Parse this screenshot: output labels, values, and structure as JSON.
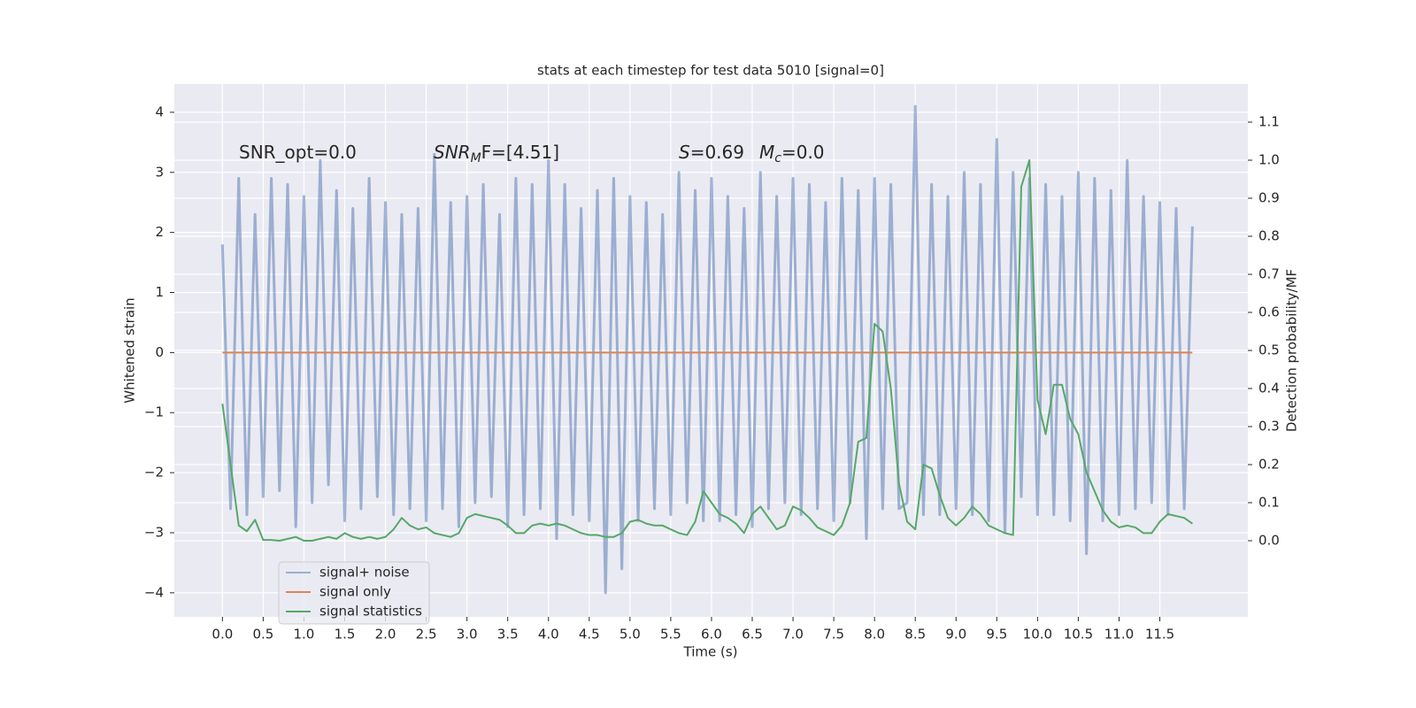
{
  "chart_data": {
    "type": "line",
    "title": "stats at each timestep for test data 5010 [signal=0]",
    "xlabel": "Time (s)",
    "ylabel": "Whitened strain",
    "y2label": "Detection probability/MF",
    "grid": true,
    "legend": "lower left",
    "annotations": [
      [
        {
          "text": "SNR_opt=0.0",
          "style": "normal"
        }
      ],
      [
        {
          "text": "SNR",
          "style": "italic"
        },
        {
          "text": "M",
          "style": "sub"
        },
        {
          "text": "F=[4.51]",
          "style": "normal"
        }
      ],
      [
        {
          "text": "S",
          "style": "italic"
        },
        {
          "text": "=0.69",
          "style": "normal"
        }
      ],
      [
        {
          "text": "M",
          "style": "italic"
        },
        {
          "text": "c",
          "style": "sub"
        },
        {
          "text": "=0.0",
          "style": "normal"
        }
      ]
    ],
    "xlim": [
      -0.59,
      12.58
    ],
    "ylim": [
      -4.4,
      4.47
    ],
    "y2lim": [
      -0.2,
      1.2
    ],
    "xticks": [
      {
        "value": 0,
        "label": "0.0"
      },
      0.5,
      {
        "value": 1,
        "label": "1.0"
      },
      1.5,
      {
        "value": 2,
        "label": "2.0"
      },
      2.5,
      {
        "value": 3,
        "label": "3.0"
      },
      3.5,
      {
        "value": 4,
        "label": "4.0"
      },
      4.5,
      {
        "value": 5,
        "label": "5.0"
      },
      5.5,
      {
        "value": 6,
        "label": "6.0"
      },
      6.5,
      {
        "value": 7,
        "label": "7.0"
      },
      7.5,
      {
        "value": 8,
        "label": "8.0"
      },
      8.5,
      {
        "value": 9,
        "label": "9.0"
      },
      9.5,
      {
        "value": 10,
        "label": "10.0"
      },
      10.5,
      {
        "value": 11,
        "label": "11.0"
      },
      11.5
    ],
    "yticks": [
      {
        "value": -4,
        "label": "−4"
      },
      {
        "value": -3,
        "label": "−3"
      },
      {
        "value": -2,
        "label": "−2"
      },
      {
        "value": -1,
        "label": "−1"
      },
      0,
      1,
      2,
      3,
      4
    ],
    "y2ticks": [
      {
        "value": 0,
        "label": "0.0"
      },
      0.1,
      0.2,
      0.3,
      0.4,
      0.5,
      0.6,
      0.7,
      0.8,
      0.9,
      {
        "value": 1,
        "label": "1.0"
      },
      1.1
    ],
    "x": [
      0,
      0.1,
      0.2,
      0.3,
      0.4,
      0.5,
      0.6,
      0.7,
      0.8,
      0.9,
      1,
      1.1,
      1.2,
      1.3,
      1.4,
      1.5,
      1.6,
      1.7,
      1.8,
      1.9,
      2,
      2.1,
      2.2,
      2.3,
      2.4,
      2.5,
      2.6,
      2.7,
      2.8,
      2.9,
      3,
      3.1,
      3.2,
      3.3,
      3.4,
      3.5,
      3.6,
      3.7,
      3.8,
      3.9,
      4,
      4.1,
      4.2,
      4.3,
      4.4,
      4.5,
      4.6,
      4.7,
      4.8,
      4.9,
      5,
      5.1,
      5.2,
      5.3,
      5.4,
      5.5,
      5.6,
      5.7,
      5.8,
      5.9,
      6,
      6.1,
      6.2,
      6.3,
      6.4,
      6.5,
      6.6,
      6.7,
      6.8,
      6.9,
      7,
      7.1,
      7.2,
      7.3,
      7.4,
      7.5,
      7.6,
      7.7,
      7.8,
      7.9,
      8,
      8.1,
      8.2,
      8.3,
      8.4,
      8.5,
      8.6,
      8.7,
      8.8,
      8.9,
      9,
      9.1,
      9.2,
      9.3,
      9.4,
      9.5,
      9.6,
      9.7,
      9.8,
      9.9,
      10,
      10.1,
      10.2,
      10.3,
      10.4,
      10.5,
      10.6,
      10.7,
      10.8,
      10.9,
      11,
      11.1,
      11.2,
      11.3,
      11.4,
      11.5,
      11.6,
      11.7,
      11.8,
      11.9
    ],
    "series": [
      {
        "name": "signal+ noise",
        "color": "#4c72b0",
        "opacity": 0.5,
        "axis": "y",
        "values": [
          1.8,
          -2.6,
          2.9,
          -2.7,
          2.3,
          -2.4,
          2.9,
          -2.3,
          2.8,
          -2.9,
          2.6,
          -2.5,
          3.2,
          -2.2,
          2.7,
          -2.8,
          2.4,
          -2.6,
          2.9,
          -2.4,
          2.5,
          -2.7,
          2.3,
          -2.6,
          2.4,
          -2.8,
          3.3,
          -2.6,
          2.5,
          -2.9,
          2.6,
          -2.5,
          2.8,
          -2.4,
          2.3,
          -2.9,
          2.9,
          -2.7,
          2.8,
          -2.6,
          3.2,
          -3.1,
          2.8,
          -2.7,
          2.4,
          -2.8,
          2.7,
          -4.0,
          2.9,
          -3.6,
          2.6,
          -2.8,
          2.5,
          -2.6,
          2.3,
          -2.7,
          3.0,
          -2.5,
          2.7,
          -2.8,
          2.9,
          -2.8,
          2.6,
          -2.7,
          2.4,
          -2.9,
          3.0,
          -2.6,
          2.6,
          -2.5,
          2.9,
          -2.7,
          2.8,
          -2.6,
          2.5,
          -2.8,
          2.9,
          -2.5,
          2.7,
          -3.1,
          2.9,
          -2.6,
          2.8,
          -2.6,
          -2.5,
          4.1,
          -2.7,
          2.8,
          -2.7,
          2.6,
          -2.6,
          3.0,
          -2.7,
          2.8,
          -2.8,
          3.55,
          -3.0,
          3.0,
          -2.4,
          2.9,
          -2.7,
          2.8,
          -2.7,
          2.6,
          -2.8,
          3.0,
          -3.35,
          2.9,
          -2.8,
          2.7,
          -2.7,
          3.2,
          -2.6,
          2.6,
          -2.5,
          2.5,
          -2.7,
          2.4,
          -2.6,
          2.1
        ]
      },
      {
        "name": "signal only",
        "color": "#dd8452",
        "opacity": 1,
        "axis": "y",
        "values": [
          0,
          0,
          0,
          0,
          0,
          0,
          0,
          0,
          0,
          0,
          0,
          0,
          0,
          0,
          0,
          0,
          0,
          0,
          0,
          0,
          0,
          0,
          0,
          0,
          0,
          0,
          0,
          0,
          0,
          0,
          0,
          0,
          0,
          0,
          0,
          0,
          0,
          0,
          0,
          0,
          0,
          0,
          0,
          0,
          0,
          0,
          0,
          0,
          0,
          0,
          0,
          0,
          0,
          0,
          0,
          0,
          0,
          0,
          0,
          0,
          0,
          0,
          0,
          0,
          0,
          0,
          0,
          0,
          0,
          0,
          0,
          0,
          0,
          0,
          0,
          0,
          0,
          0,
          0,
          0,
          0,
          0,
          0,
          0,
          0,
          0,
          0,
          0,
          0,
          0,
          0,
          0,
          0,
          0,
          0,
          0,
          0,
          0,
          0,
          0,
          0,
          0,
          0,
          0,
          0,
          0,
          0,
          0,
          0,
          0,
          0,
          0,
          0,
          0,
          0,
          0,
          0,
          0,
          0,
          0
        ]
      },
      {
        "name": "signal statistics",
        "color": "#55a868",
        "opacity": 1,
        "axis": "y2",
        "values": [
          0.36,
          0.2,
          0.04,
          0.025,
          0.055,
          0.002,
          0.002,
          0.0,
          0.005,
          0.01,
          0.0,
          0.0,
          0.005,
          0.01,
          0.005,
          0.02,
          0.01,
          0.005,
          0.01,
          0.005,
          0.01,
          0.03,
          0.06,
          0.04,
          0.03,
          0.035,
          0.02,
          0.015,
          0.01,
          0.02,
          0.06,
          0.07,
          0.065,
          0.06,
          0.055,
          0.04,
          0.02,
          0.02,
          0.04,
          0.045,
          0.04,
          0.045,
          0.04,
          0.03,
          0.02,
          0.015,
          0.015,
          0.01,
          0.01,
          0.02,
          0.05,
          0.055,
          0.045,
          0.04,
          0.04,
          0.03,
          0.02,
          0.015,
          0.05,
          0.13,
          0.1,
          0.07,
          0.06,
          0.045,
          0.02,
          0.07,
          0.09,
          0.06,
          0.03,
          0.04,
          0.09,
          0.08,
          0.06,
          0.035,
          0.025,
          0.015,
          0.04,
          0.1,
          0.26,
          0.27,
          0.57,
          0.55,
          0.4,
          0.15,
          0.05,
          0.03,
          0.2,
          0.19,
          0.12,
          0.06,
          0.04,
          0.06,
          0.09,
          0.07,
          0.04,
          0.03,
          0.02,
          0.015,
          0.93,
          1.0,
          0.37,
          0.28,
          0.41,
          0.41,
          0.32,
          0.28,
          0.18,
          0.13,
          0.08,
          0.05,
          0.035,
          0.04,
          0.035,
          0.02,
          0.02,
          0.05,
          0.07,
          0.065,
          0.06,
          0.045
        ]
      }
    ]
  }
}
